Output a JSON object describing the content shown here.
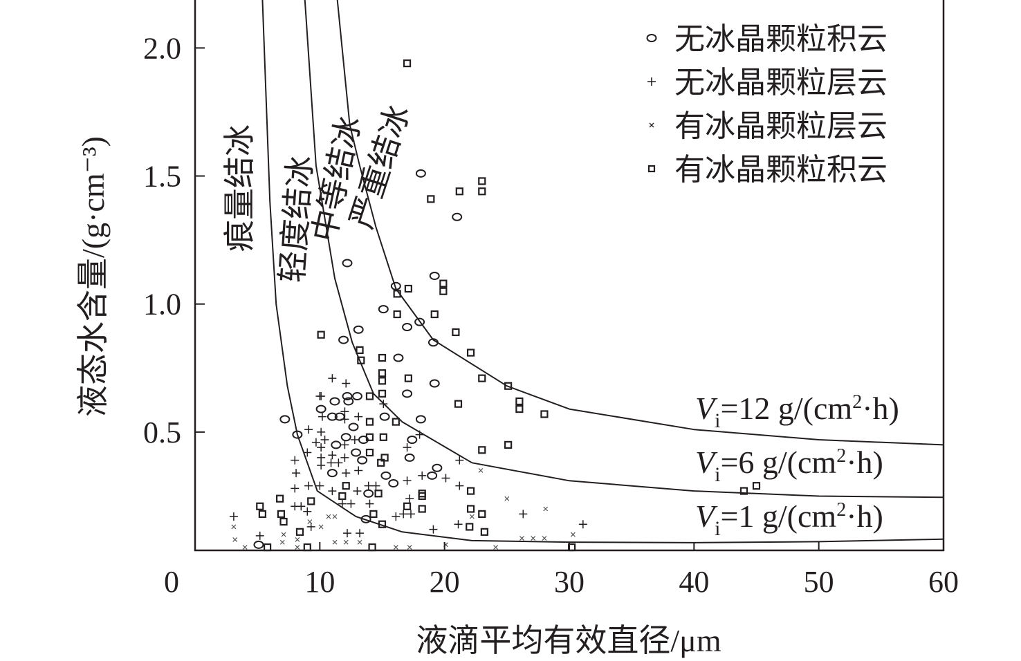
{
  "chart_data": {
    "type": "scatter",
    "xlabel": "液滴平均有效直径/μm",
    "ylabel": "液态水含量/(g·cm⁻³)",
    "xlim": [
      0,
      60
    ],
    "ylim": [
      0.038,
      2.19
    ],
    "grid": false,
    "x_ticks": [
      "0",
      "10",
      "20",
      "30",
      "40",
      "50",
      "60"
    ],
    "x_tick_values": [
      0,
      10,
      20,
      30,
      40,
      50,
      60
    ],
    "y_ticks": [
      "0.5",
      "1.0",
      "1.5",
      "2.0"
    ],
    "y_tick_values": [
      0.5,
      1.0,
      1.5,
      2.0
    ],
    "legend_position": "top-right",
    "region_labels": [
      "痕量结冰",
      "轻度结冰",
      "中等结冰",
      "严重结冰"
    ],
    "curves": [
      {
        "name": "Vi=1 g/(cm²·h)",
        "label_v": "V",
        "label_sub": "i",
        "label_rest": "=1 g/(cm",
        "label_sup": "2",
        "label_end": "·h)",
        "points": [
          [
            5.4,
            2.19
          ],
          [
            6.0,
            1.4
          ],
          [
            6.5,
            1.0
          ],
          [
            7.4,
            0.68
          ],
          [
            8.2,
            0.49
          ],
          [
            9.8,
            0.27
          ],
          [
            12.9,
            0.17
          ],
          [
            16.6,
            0.11
          ],
          [
            22.2,
            0.076
          ],
          [
            30,
            0.07
          ],
          [
            40,
            0.068
          ],
          [
            50,
            0.072
          ],
          [
            60,
            0.082
          ]
        ]
      },
      {
        "name": "Vi=6 g/(cm²·h)",
        "label_v": "V",
        "label_sub": "i",
        "label_rest": "=6 g/(cm",
        "label_sup": "2",
        "label_end": "·h)",
        "points": [
          [
            8.8,
            2.19
          ],
          [
            9.7,
            1.54
          ],
          [
            11.2,
            1.1
          ],
          [
            12.6,
            0.85
          ],
          [
            14.3,
            0.65
          ],
          [
            16.6,
            0.54
          ],
          [
            22.2,
            0.38
          ],
          [
            30,
            0.31
          ],
          [
            40,
            0.27
          ],
          [
            50,
            0.25
          ],
          [
            60,
            0.245
          ]
        ]
      },
      {
        "name": "Vi=12 g/(cm²·h)",
        "label_v": "V",
        "label_sub": "i",
        "label_rest": "=12 g/(cm",
        "label_sup": "2",
        "label_end": "·h)",
        "points": [
          [
            11.4,
            2.19
          ],
          [
            12.4,
            1.7
          ],
          [
            13.2,
            1.54
          ],
          [
            14.5,
            1.3
          ],
          [
            16.1,
            1.06
          ],
          [
            19.1,
            0.86
          ],
          [
            25,
            0.68
          ],
          [
            30,
            0.59
          ],
          [
            40,
            0.51
          ],
          [
            50,
            0.47
          ],
          [
            60,
            0.45
          ]
        ]
      }
    ],
    "series": [
      {
        "name": "无冰晶颗粒积云",
        "marker": "circle",
        "points": [
          [
            18.1,
            1.51
          ],
          [
            21.0,
            1.34
          ],
          [
            12.2,
            1.16
          ],
          [
            19.2,
            1.11
          ],
          [
            16.1,
            1.07
          ],
          [
            15.1,
            0.98
          ],
          [
            13.1,
            0.9
          ],
          [
            17.0,
            0.91
          ],
          [
            18.0,
            0.93
          ],
          [
            19.1,
            0.85
          ],
          [
            11.9,
            0.86
          ],
          [
            16.3,
            0.79
          ],
          [
            19.2,
            0.69
          ],
          [
            17.0,
            0.65
          ],
          [
            7.2,
            0.55
          ],
          [
            8.2,
            0.49
          ],
          [
            10.1,
            0.59
          ],
          [
            11.2,
            0.62
          ],
          [
            12.2,
            0.64
          ],
          [
            13.0,
            0.64
          ],
          [
            12.3,
            0.62
          ],
          [
            11.0,
            0.56
          ],
          [
            11.6,
            0.56
          ],
          [
            12.7,
            0.52
          ],
          [
            11.3,
            0.45
          ],
          [
            12.1,
            0.48
          ],
          [
            13.5,
            0.47
          ],
          [
            12.9,
            0.42
          ],
          [
            13.4,
            0.39
          ],
          [
            11.0,
            0.34
          ],
          [
            15.2,
            0.56
          ],
          [
            18.1,
            0.55
          ],
          [
            17.4,
            0.47
          ],
          [
            17.2,
            0.4
          ],
          [
            19.4,
            0.36
          ],
          [
            19.0,
            0.33
          ],
          [
            15.3,
            0.33
          ],
          [
            15.9,
            0.3
          ],
          [
            13.9,
            0.26
          ],
          [
            13.7,
            0.16
          ],
          [
            5.1,
            0.06
          ]
        ]
      },
      {
        "name": "无冰晶颗粒层云",
        "marker": "plus",
        "points": [
          [
            10.1,
            0.64
          ],
          [
            10.2,
            0.56
          ],
          [
            12.0,
            0.58
          ],
          [
            12.0,
            0.55
          ],
          [
            13.1,
            0.56
          ],
          [
            9.1,
            0.51
          ],
          [
            10.1,
            0.5
          ],
          [
            9.7,
            0.46
          ],
          [
            10.4,
            0.47
          ],
          [
            10.1,
            0.44
          ],
          [
            12.8,
            0.47
          ],
          [
            9.0,
            0.42
          ],
          [
            12.0,
            0.45
          ],
          [
            10.1,
            0.4
          ],
          [
            11.0,
            0.41
          ],
          [
            12.0,
            0.4
          ],
          [
            10.9,
            0.38
          ],
          [
            11.5,
            0.38
          ],
          [
            10.1,
            0.37
          ],
          [
            13.1,
            0.35
          ],
          [
            8.0,
            0.39
          ],
          [
            8.1,
            0.34
          ],
          [
            12.1,
            0.34
          ],
          [
            8.0,
            0.28
          ],
          [
            9.1,
            0.29
          ],
          [
            10.0,
            0.29
          ],
          [
            11.0,
            0.27
          ],
          [
            13.0,
            0.27
          ],
          [
            13.9,
            0.29
          ],
          [
            14.5,
            0.29
          ],
          [
            8.0,
            0.21
          ],
          [
            8.5,
            0.21
          ],
          [
            11.8,
            0.22
          ],
          [
            12.5,
            0.22
          ],
          [
            14.0,
            0.22
          ],
          [
            9.0,
            0.19
          ],
          [
            9.3,
            0.13
          ],
          [
            5.2,
            0.095
          ],
          [
            3.1,
            0.17
          ],
          [
            12.2,
            0.105
          ],
          [
            13.2,
            0.105
          ],
          [
            17.0,
            0.31
          ],
          [
            18.2,
            0.33
          ],
          [
            20.1,
            0.32
          ],
          [
            21.2,
            0.29
          ],
          [
            17.2,
            0.24
          ],
          [
            16.1,
            0.17
          ],
          [
            16.7,
            0.18
          ],
          [
            17.3,
            0.18
          ],
          [
            21.1,
            0.14
          ],
          [
            19.1,
            0.12
          ],
          [
            17.0,
            0.44
          ],
          [
            18.0,
            0.49
          ],
          [
            21.2,
            0.39
          ],
          [
            15.1,
            0.61
          ],
          [
            11.0,
            0.71
          ],
          [
            12.1,
            0.69
          ],
          [
            10.0,
            0.64
          ],
          [
            26.3,
            0.18
          ],
          [
            31.1,
            0.14
          ]
        ]
      },
      {
        "name": "有冰晶颗粒层云",
        "marker": "x",
        "points": [
          [
            3.1,
            0.13
          ],
          [
            3.2,
            0.08
          ],
          [
            4.0,
            0.05
          ],
          [
            7.1,
            0.1
          ],
          [
            7.0,
            0.07
          ],
          [
            8.2,
            0.08
          ],
          [
            8.2,
            0.05
          ],
          [
            9.2,
            0.15
          ],
          [
            10.7,
            0.17
          ],
          [
            11.2,
            0.17
          ],
          [
            10.1,
            0.13
          ],
          [
            11.2,
            0.07
          ],
          [
            12.1,
            0.07
          ],
          [
            13.2,
            0.07
          ],
          [
            16.1,
            0.05
          ],
          [
            17.2,
            0.05
          ],
          [
            20.1,
            0.06
          ],
          [
            22.9,
            0.35
          ],
          [
            25.0,
            0.24
          ],
          [
            28.1,
            0.2
          ],
          [
            22.2,
            0.17
          ],
          [
            26.2,
            0.085
          ],
          [
            27.1,
            0.085
          ],
          [
            28.0,
            0.085
          ],
          [
            30.3,
            0.1
          ],
          [
            24.1,
            0.05
          ]
        ]
      },
      {
        "name": "有冰晶颗粒积云",
        "marker": "square",
        "points": [
          [
            17.0,
            1.94
          ],
          [
            23.0,
            1.48
          ],
          [
            23.0,
            1.44
          ],
          [
            21.2,
            1.44
          ],
          [
            18.9,
            1.41
          ],
          [
            19.9,
            1.08
          ],
          [
            19.9,
            1.05
          ],
          [
            17.1,
            1.06
          ],
          [
            16.2,
            1.04
          ],
          [
            19.2,
            0.96
          ],
          [
            16.2,
            0.96
          ],
          [
            20.9,
            0.89
          ],
          [
            10.1,
            0.88
          ],
          [
            22.1,
            0.81
          ],
          [
            13.2,
            0.82
          ],
          [
            13.3,
            0.78
          ],
          [
            15.0,
            0.79
          ],
          [
            15.0,
            0.73
          ],
          [
            15.0,
            0.7
          ],
          [
            17.1,
            0.71
          ],
          [
            23.0,
            0.71
          ],
          [
            25.1,
            0.68
          ],
          [
            21.1,
            0.61
          ],
          [
            26.0,
            0.62
          ],
          [
            26.0,
            0.59
          ],
          [
            28.0,
            0.57
          ],
          [
            25.1,
            0.45
          ],
          [
            23.0,
            0.43
          ],
          [
            14.0,
            0.64
          ],
          [
            15.0,
            0.65
          ],
          [
            14.0,
            0.54
          ],
          [
            16.1,
            0.54
          ],
          [
            14.0,
            0.48
          ],
          [
            15.1,
            0.48
          ],
          [
            14.0,
            0.42
          ],
          [
            15.2,
            0.4
          ],
          [
            14.9,
            0.38
          ],
          [
            12.1,
            0.29
          ],
          [
            11.8,
            0.25
          ],
          [
            14.7,
            0.26
          ],
          [
            18.2,
            0.26
          ],
          [
            18.2,
            0.25
          ],
          [
            17.0,
            0.21
          ],
          [
            18.2,
            0.2
          ],
          [
            22.1,
            0.27
          ],
          [
            22.1,
            0.2
          ],
          [
            22.0,
            0.13
          ],
          [
            14.3,
            0.18
          ],
          [
            15.0,
            0.14
          ],
          [
            9.3,
            0.23
          ],
          [
            8.4,
            0.11
          ],
          [
            6.8,
            0.24
          ],
          [
            5.2,
            0.21
          ],
          [
            5.4,
            0.18
          ],
          [
            6.9,
            0.18
          ],
          [
            7.1,
            0.15
          ],
          [
            5.8,
            0.05
          ],
          [
            9.0,
            0.05
          ],
          [
            14.2,
            0.05
          ],
          [
            23.0,
            0.18
          ],
          [
            23.2,
            0.11
          ],
          [
            44.0,
            0.27
          ],
          [
            45.0,
            0.29
          ],
          [
            30.2,
            0.05
          ]
        ]
      }
    ]
  }
}
